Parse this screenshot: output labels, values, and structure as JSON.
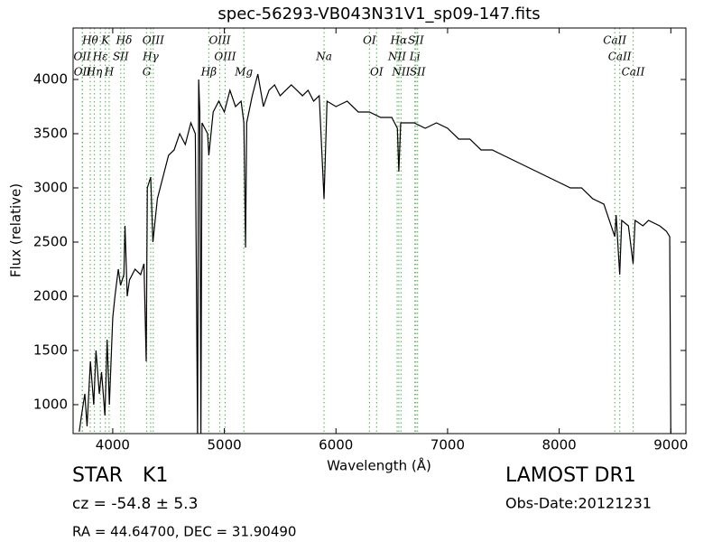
{
  "chart_data": {
    "type": "line",
    "title": "spec-56293-VB043N31V1_sp09-147.fits",
    "x_label": "Wavelength (Å)",
    "y_label": "Flux (relative)",
    "color": "#000000",
    "line_color": "#66bb66",
    "xlim": [
      3645,
      9135
    ],
    "ylim": [
      733,
      4475
    ],
    "xticks": [
      4000,
      5000,
      6000,
      7000,
      8000,
      9000
    ],
    "yticks": [
      1000,
      1500,
      2000,
      2500,
      3000,
      3500,
      4000
    ],
    "grid": false,
    "x": [
      3700,
      3720,
      3750,
      3770,
      3800,
      3830,
      3850,
      3880,
      3900,
      3930,
      3950,
      3970,
      4000,
      4020,
      4050,
      4070,
      4100,
      4110,
      4130,
      4150,
      4200,
      4250,
      4280,
      4300,
      4310,
      4340,
      4360,
      4400,
      4450,
      4500,
      4550,
      4600,
      4650,
      4700,
      4740,
      4760,
      4770,
      4780,
      4790,
      4800,
      4850,
      4861,
      4900,
      4950,
      5000,
      5050,
      5100,
      5150,
      5175,
      5190,
      5200,
      5250,
      5300,
      5350,
      5400,
      5450,
      5500,
      5550,
      5600,
      5650,
      5700,
      5750,
      5800,
      5850,
      5893,
      5920,
      6000,
      6100,
      6200,
      6300,
      6400,
      6500,
      6550,
      6563,
      6580,
      6700,
      6800,
      6900,
      7000,
      7100,
      7200,
      7300,
      7400,
      7500,
      7600,
      7700,
      7800,
      7900,
      8000,
      8100,
      8200,
      8300,
      8400,
      8498,
      8510,
      8542,
      8560,
      8620,
      8662,
      8680,
      8750,
      8800,
      8900,
      8960,
      8990,
      9000
    ],
    "values": [
      750,
      900,
      1100,
      800,
      1400,
      1000,
      1500,
      1100,
      1300,
      900,
      1600,
      1000,
      1800,
      2000,
      2250,
      2100,
      2200,
      2650,
      2000,
      2150,
      2250,
      2200,
      2300,
      1400,
      3000,
      3100,
      2500,
      2900,
      3100,
      3300,
      3350,
      3500,
      3400,
      3600,
      3500,
      700,
      4000,
      3700,
      700,
      3600,
      3500,
      3300,
      3700,
      3800,
      3700,
      3900,
      3750,
      3800,
      3600,
      2450,
      3600,
      3850,
      4050,
      3750,
      3900,
      3950,
      3850,
      3900,
      3950,
      3900,
      3850,
      3900,
      3800,
      3850,
      2900,
      3800,
      3750,
      3800,
      3700,
      3700,
      3650,
      3650,
      3550,
      3150,
      3600,
      3600,
      3550,
      3600,
      3550,
      3450,
      3450,
      3350,
      3350,
      3300,
      3250,
      3200,
      3150,
      3100,
      3050,
      3000,
      3000,
      2900,
      2850,
      2550,
      2750,
      2200,
      2700,
      2650,
      2300,
      2700,
      2650,
      2700,
      2650,
      2600,
      2550,
      700
    ],
    "line_label_rows": [
      [
        {
          "label": "Hθ",
          "x": 3798
        },
        {
          "label": "K",
          "x": 3934
        },
        {
          "label": "Hδ",
          "x": 4102
        },
        {
          "label": "OIII",
          "x": 4363
        },
        {
          "label": "OIII",
          "x": 4959
        },
        {
          "label": "OI",
          "x": 6300
        },
        {
          "label": "Hα",
          "x": 6563
        },
        {
          "label": "SII",
          "x": 6716
        },
        {
          "label": "CaII",
          "x": 8498
        }
      ],
      [
        {
          "label": "OII",
          "x": 3727
        },
        {
          "label": "Hε",
          "x": 3889
        },
        {
          "label": "SII",
          "x": 4072
        },
        {
          "label": "Hγ",
          "x": 4340
        },
        {
          "label": "OIII",
          "x": 5007
        },
        {
          "label": "Na",
          "x": 5893
        },
        {
          "label": "NII",
          "x": 6548
        },
        {
          "label": "Li",
          "x": 6707
        },
        {
          "label": "CaII",
          "x": 8542
        }
      ],
      [
        {
          "label": "OII",
          "x": 3729
        },
        {
          "label": "Hη",
          "x": 3835
        },
        {
          "label": "H",
          "x": 3968
        },
        {
          "label": "G",
          "x": 4304
        },
        {
          "label": "Hβ",
          "x": 4861
        },
        {
          "label": "Mg",
          "x": 5175
        },
        {
          "label": "OI",
          "x": 6364
        },
        {
          "label": "NII",
          "x": 6583
        },
        {
          "label": "SII",
          "x": 6731
        },
        {
          "label": "CaII",
          "x": 8662
        }
      ]
    ]
  },
  "footer": {
    "class": "STAR",
    "subclass": "K1",
    "cz": "cz = -54.8 ± 5.3",
    "coords": "RA = 44.64700, DEC = 31.90490",
    "survey": "LAMOST DR1",
    "obs_date": "Obs-Date:20121231"
  }
}
